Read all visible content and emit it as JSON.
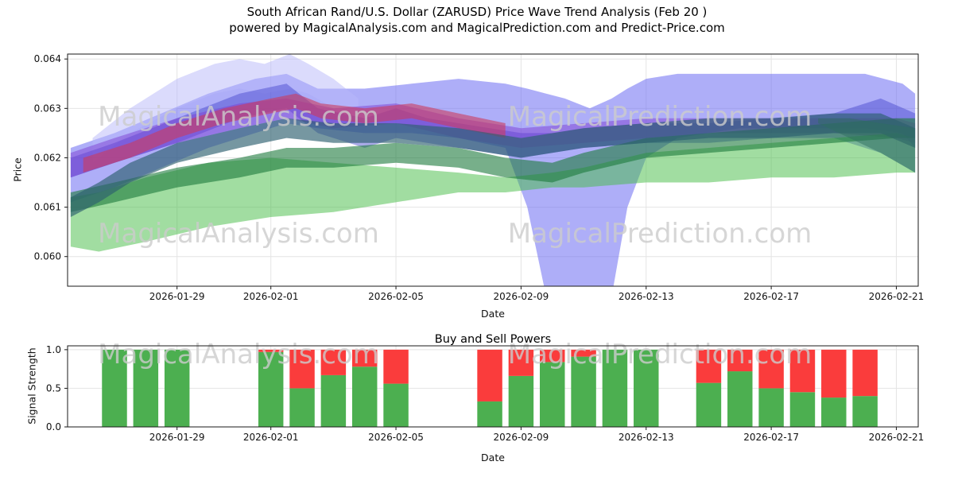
{
  "watermarks": {
    "left": "MagicalAnalysis.com",
    "right": "MagicalPrediction.com",
    "color": "#cccccc"
  },
  "colors": {
    "grid": "#e4e4e4",
    "axis": "#1a1a1a",
    "background": "#ffffff"
  },
  "chart_data": [
    {
      "type": "area",
      "title": "South African Rand/U.S. Dollar (ZARUSD) Price Wave Trend Analysis (Feb 20 )",
      "subtitle": "powered by MagicalAnalysis.com and MagicalPrediction.com and Predict-Price.com",
      "xlabel": "Date",
      "ylabel": "Price",
      "x_epoch": "2026-01-26",
      "x_domain_days": [
        -0.5,
        26.7
      ],
      "x_tick_days": [
        3,
        6,
        10,
        14,
        18,
        22,
        26
      ],
      "x_tick_labels": [
        "2026-01-29",
        "2026-02-01",
        "2026-02-05",
        "2026-02-09",
        "2026-02-13",
        "2026-02-17",
        "2026-02-21"
      ],
      "ylim": [
        0.0594,
        0.0641
      ],
      "y_ticks": [
        0.06,
        0.061,
        0.062,
        0.063,
        0.064
      ],
      "y_tick_labels": [
        "0.060",
        "0.061",
        "0.062",
        "0.063",
        "0.064"
      ],
      "grid": true,
      "legend": "none",
      "bands": [
        {
          "name": "blue-envelope",
          "color": "#6b6bf2",
          "opacity": 0.55,
          "x": [
            -0.4,
            1,
            2.5,
            4,
            5.5,
            6.5,
            7.5,
            9,
            10.5,
            12,
            13.5,
            14.2,
            14.8,
            15.4,
            16.2,
            16.9,
            17.4,
            18,
            19,
            21,
            23,
            25,
            26.2,
            26.6
          ],
          "hi": [
            0.0622,
            0.0625,
            0.0629,
            0.0633,
            0.0636,
            0.0637,
            0.0634,
            0.0634,
            0.0635,
            0.0636,
            0.0635,
            0.0634,
            0.0633,
            0.0632,
            0.063,
            0.0632,
            0.0634,
            0.0636,
            0.0637,
            0.0637,
            0.0637,
            0.0637,
            0.0635,
            0.0633
          ],
          "lo": [
            0.0611,
            0.0614,
            0.0618,
            0.0622,
            0.0625,
            0.0627,
            0.0626,
            0.0625,
            0.0625,
            0.0624,
            0.0622,
            0.061,
            0.0592,
            0.0574,
            0.0574,
            0.0592,
            0.061,
            0.062,
            0.0624,
            0.0626,
            0.0626,
            0.0626,
            0.0625,
            0.0622
          ]
        },
        {
          "name": "lavender-peak",
          "color": "#b8b8fa",
          "opacity": 0.5,
          "x": [
            0.3,
            1.5,
            3,
            4.2,
            5,
            5.8,
            6.6,
            7.2,
            8,
            8.8
          ],
          "hi": [
            0.0624,
            0.063,
            0.0636,
            0.0639,
            0.064,
            0.0639,
            0.0641,
            0.0639,
            0.0636,
            0.0632
          ],
          "lo": [
            0.0619,
            0.0625,
            0.063,
            0.0633,
            0.0634,
            0.0633,
            0.0634,
            0.0633,
            0.063,
            0.0627
          ]
        },
        {
          "name": "blue-core",
          "color": "#4343cc",
          "opacity": 0.45,
          "x": [
            -0.4,
            1,
            3,
            5,
            6.5,
            7.5,
            9,
            10,
            11,
            12,
            13,
            14,
            15,
            16,
            18,
            20,
            22,
            24,
            25.5,
            26.6
          ],
          "hi": [
            0.062,
            0.0623,
            0.0628,
            0.0633,
            0.0635,
            0.063,
            0.0628,
            0.063,
            0.0628,
            0.0627,
            0.0626,
            0.0625,
            0.0625,
            0.0626,
            0.0627,
            0.0627,
            0.0628,
            0.0629,
            0.0632,
            0.0629
          ],
          "lo": [
            0.0616,
            0.0619,
            0.0623,
            0.0628,
            0.063,
            0.0625,
            0.0622,
            0.0624,
            0.0623,
            0.0622,
            0.0621,
            0.062,
            0.0621,
            0.0622,
            0.0623,
            0.0623,
            0.0624,
            0.0624,
            0.0621,
            0.0617
          ]
        },
        {
          "name": "purple-band",
          "color": "#7d3fd1",
          "opacity": 0.5,
          "x": [
            -0.4,
            1,
            3,
            5,
            6.5,
            8,
            10,
            12,
            14,
            16,
            18,
            20,
            22,
            24,
            26,
            26.6
          ],
          "hi": [
            0.0621,
            0.0624,
            0.0628,
            0.0631,
            0.0632,
            0.063,
            0.0631,
            0.0628,
            0.0626,
            0.0627,
            0.0628,
            0.0628,
            0.0628,
            0.0628,
            0.0628,
            0.0627
          ],
          "lo": [
            0.0616,
            0.0619,
            0.0623,
            0.0626,
            0.0628,
            0.0626,
            0.0627,
            0.0624,
            0.0622,
            0.0623,
            0.0624,
            0.0625,
            0.0625,
            0.0625,
            0.0624,
            0.0623
          ]
        },
        {
          "name": "crimson-line",
          "color": "#cc3a5e",
          "opacity": 0.6,
          "x": [
            0,
            1.5,
            3,
            4.5,
            6,
            6.8,
            7.6,
            9,
            10.5,
            12,
            13.5
          ],
          "hi": [
            0.062,
            0.0623,
            0.0627,
            0.063,
            0.0632,
            0.0633,
            0.0631,
            0.063,
            0.0631,
            0.0629,
            0.0627
          ],
          "lo": [
            0.0617,
            0.062,
            0.0624,
            0.0627,
            0.0629,
            0.063,
            0.0628,
            0.0627,
            0.0628,
            0.0626,
            0.0624
          ]
        },
        {
          "name": "green-envelope",
          "color": "#44bb44",
          "opacity": 0.5,
          "x": [
            -0.4,
            0.5,
            2,
            4,
            6,
            8,
            10,
            12,
            13.5,
            15,
            16,
            18,
            20,
            22,
            24,
            26,
            26.6
          ],
          "hi": [
            0.0612,
            0.0613,
            0.0616,
            0.0619,
            0.062,
            0.0619,
            0.0618,
            0.0617,
            0.0616,
            0.0617,
            0.0618,
            0.0621,
            0.0622,
            0.0623,
            0.0624,
            0.0625,
            0.0624
          ],
          "lo": [
            0.0602,
            0.0601,
            0.0603,
            0.0606,
            0.0608,
            0.0609,
            0.0611,
            0.0613,
            0.0613,
            0.0614,
            0.0614,
            0.0615,
            0.0615,
            0.0616,
            0.0616,
            0.0617,
            0.0617
          ]
        },
        {
          "name": "green-core",
          "color": "#1d7a3c",
          "opacity": 0.6,
          "x": [
            -0.4,
            1,
            3,
            5,
            6.5,
            8,
            10,
            12,
            13.5,
            15,
            16,
            18,
            20,
            22,
            24,
            26,
            26.6
          ],
          "hi": [
            0.0613,
            0.0615,
            0.0618,
            0.062,
            0.0622,
            0.0622,
            0.0623,
            0.0622,
            0.062,
            0.0619,
            0.0621,
            0.0624,
            0.0625,
            0.0626,
            0.0627,
            0.0628,
            0.0628
          ],
          "lo": [
            0.0609,
            0.0611,
            0.0614,
            0.0616,
            0.0618,
            0.0618,
            0.0619,
            0.0618,
            0.0616,
            0.0615,
            0.0617,
            0.062,
            0.0621,
            0.0622,
            0.0623,
            0.0624,
            0.0624
          ]
        },
        {
          "name": "teal-line",
          "color": "#2c5f6e",
          "opacity": 0.65,
          "x": [
            -0.4,
            0.5,
            1.5,
            3,
            5,
            6.5,
            8,
            10,
            12,
            14,
            16,
            18,
            20,
            22,
            24,
            25.5,
            26.6
          ],
          "hi": [
            0.0612,
            0.0615,
            0.0619,
            0.0623,
            0.0626,
            0.0628,
            0.0627,
            0.0627,
            0.0626,
            0.0624,
            0.0626,
            0.0627,
            0.0628,
            0.0628,
            0.0629,
            0.0629,
            0.0626
          ],
          "lo": [
            0.0608,
            0.0611,
            0.0615,
            0.0619,
            0.0622,
            0.0624,
            0.0623,
            0.0623,
            0.0622,
            0.062,
            0.0622,
            0.0623,
            0.0624,
            0.0624,
            0.0625,
            0.0625,
            0.0622
          ]
        },
        {
          "name": "teal-right-fan",
          "color": "#2e6e5f",
          "opacity": 0.5,
          "x": [
            23.5,
            24.5,
            25.5,
            26.6
          ],
          "hi": [
            0.0628,
            0.0628,
            0.0627,
            0.0626
          ],
          "lo": [
            0.0627,
            0.0624,
            0.0621,
            0.0617
          ]
        }
      ]
    },
    {
      "type": "bar",
      "title": "Buy and Sell Powers",
      "xlabel": "Date",
      "ylabel": "Signal Strength",
      "x_domain_days": [
        -0.5,
        26.7
      ],
      "x_tick_days": [
        3,
        6,
        10,
        14,
        18,
        22,
        26
      ],
      "x_tick_labels": [
        "2026-01-29",
        "2026-02-01",
        "2026-02-05",
        "2026-02-09",
        "2026-02-13",
        "2026-02-17",
        "2026-02-21"
      ],
      "ylim": [
        0,
        1.05
      ],
      "y_ticks": [
        0.0,
        0.5,
        1.0
      ],
      "y_tick_labels": [
        "0.0",
        "0.5",
        "1.0"
      ],
      "bar_width_days": 0.8,
      "series": [
        {
          "name": "Buy",
          "color": "#4caf50"
        },
        {
          "name": "Sell",
          "color": "#fa3c3c"
        }
      ],
      "bars": [
        {
          "date": "2026-01-27",
          "day": 1,
          "buy": 1.0,
          "sell": 0.0
        },
        {
          "date": "2026-01-28",
          "day": 2,
          "buy": 1.0,
          "sell": 0.0
        },
        {
          "date": "2026-01-29",
          "day": 3,
          "buy": 1.0,
          "sell": 0.0
        },
        {
          "date": "2026-02-01",
          "day": 6,
          "buy": 0.97,
          "sell": 0.03
        },
        {
          "date": "2026-02-02",
          "day": 7,
          "buy": 0.5,
          "sell": 0.5
        },
        {
          "date": "2026-02-03",
          "day": 8,
          "buy": 0.67,
          "sell": 0.33
        },
        {
          "date": "2026-02-04",
          "day": 9,
          "buy": 0.78,
          "sell": 0.22
        },
        {
          "date": "2026-02-05",
          "day": 10,
          "buy": 0.56,
          "sell": 0.44
        },
        {
          "date": "2026-02-08",
          "day": 13,
          "buy": 0.33,
          "sell": 0.67
        },
        {
          "date": "2026-02-09",
          "day": 14,
          "buy": 0.66,
          "sell": 0.34
        },
        {
          "date": "2026-02-10",
          "day": 15,
          "buy": 0.84,
          "sell": 0.16
        },
        {
          "date": "2026-02-11",
          "day": 16,
          "buy": 0.91,
          "sell": 0.09
        },
        {
          "date": "2026-02-12",
          "day": 17,
          "buy": 1.0,
          "sell": 0.0
        },
        {
          "date": "2026-02-13",
          "day": 18,
          "buy": 1.0,
          "sell": 0.0
        },
        {
          "date": "2026-02-15",
          "day": 20,
          "buy": 0.57,
          "sell": 0.43
        },
        {
          "date": "2026-02-16",
          "day": 21,
          "buy": 0.72,
          "sell": 0.28
        },
        {
          "date": "2026-02-17",
          "day": 22,
          "buy": 0.5,
          "sell": 0.5
        },
        {
          "date": "2026-02-18",
          "day": 23,
          "buy": 0.45,
          "sell": 0.55
        },
        {
          "date": "2026-02-19",
          "day": 24,
          "buy": 0.38,
          "sell": 0.62
        },
        {
          "date": "2026-02-20",
          "day": 25,
          "buy": 0.4,
          "sell": 0.6
        }
      ]
    }
  ]
}
